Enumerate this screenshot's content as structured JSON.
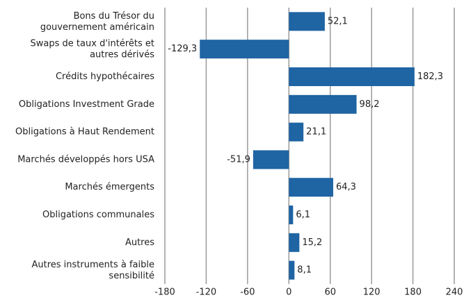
{
  "chart_data": {
    "type": "barh",
    "categories": [
      "Bons du Trésor du\ngouvernement américain",
      "Swaps de taux d'intérêts et\nautres dérivés",
      "Crédits hypothécaires",
      "Obligations Investment Grade",
      "Obligations à Haut Rendement",
      "Marchés développés hors USA",
      "Marchés émergents",
      "Obligations communales",
      "Autres",
      "Autres instruments à faible\nsensibilité"
    ],
    "values": [
      52.1,
      -129.3,
      182.3,
      98.2,
      21.1,
      -51.9,
      64.3,
      6.1,
      15.2,
      8.1
    ],
    "value_labels": [
      "52,1",
      "-129,3",
      "182,3",
      "98,2",
      "21,1",
      "-51,9",
      "64,3",
      "6,1",
      "15,2",
      "8,1"
    ],
    "color": "#1f64a3",
    "xlim": [
      -180,
      240
    ],
    "xticks": [
      -180,
      -120,
      -60,
      0,
      60,
      120,
      180,
      240
    ],
    "grid": true
  }
}
